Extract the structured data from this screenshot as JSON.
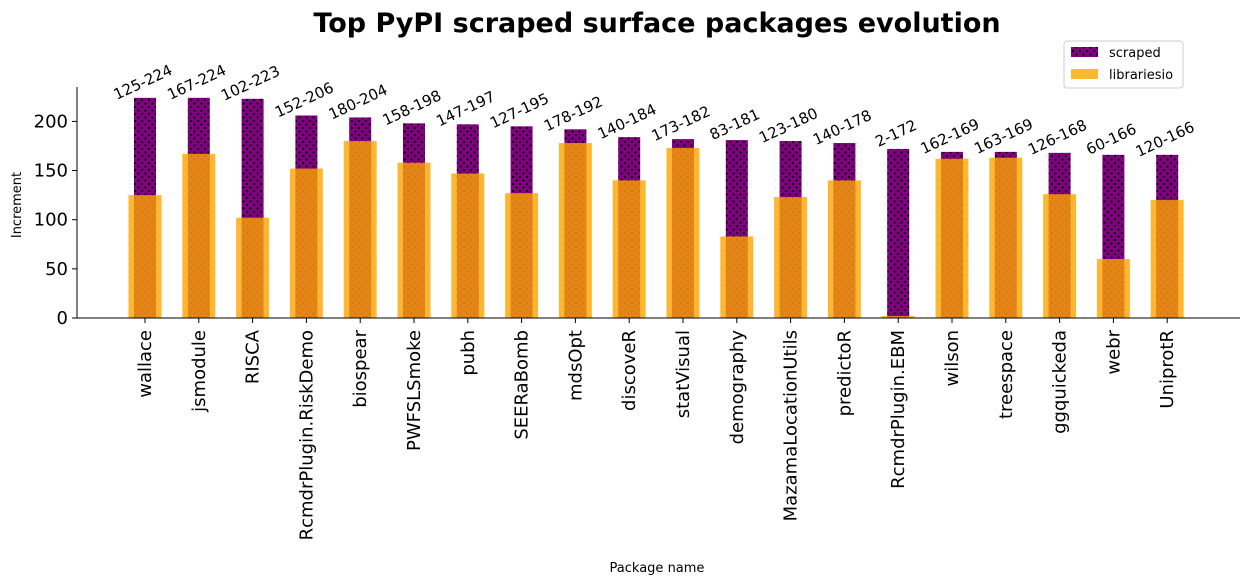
{
  "chart_data": {
    "type": "bar",
    "title": "Top PyPI scraped surface packages evolution",
    "xlabel": "Package name",
    "ylabel": "Increment",
    "ylim": [
      0,
      235
    ],
    "yticks": [
      0,
      50,
      100,
      150,
      200
    ],
    "grid": false,
    "legend_position": "top-right",
    "categories": [
      "wallace",
      "jsmodule",
      "RISCA",
      "RcmdrPlugin.RiskDemo",
      "biospear",
      "PWFSLSmoke",
      "pubh",
      "SEERaBomb",
      "mdsOpt",
      "discoveR",
      "statVisual",
      "demography",
      "MazamaLocationUtils",
      "predictoR",
      "RcmdrPlugin.EBM",
      "wilson",
      "treespace",
      "ggquickeda",
      "webr",
      "UniprotR"
    ],
    "series": [
      {
        "name": "scraped",
        "color": "#800080",
        "pattern": "dots",
        "values": [
          224,
          224,
          223,
          206,
          204,
          198,
          197,
          195,
          192,
          184,
          182,
          181,
          180,
          178,
          172,
          169,
          169,
          168,
          166,
          166
        ]
      },
      {
        "name": "librariesio",
        "color": "#FFA500",
        "values": [
          125,
          167,
          102,
          152,
          180,
          158,
          147,
          127,
          178,
          140,
          173,
          83,
          123,
          140,
          2,
          162,
          163,
          126,
          60,
          120
        ]
      }
    ],
    "data_labels": [
      "125-224",
      "167-224",
      "102-223",
      "152-206",
      "180-204",
      "158-198",
      "147-197",
      "127-195",
      "178-192",
      "140-184",
      "173-182",
      "83-181",
      "123-180",
      "140-178",
      "2-172",
      "162-169",
      "163-169",
      "126-168",
      "60-166",
      "120-166"
    ]
  }
}
